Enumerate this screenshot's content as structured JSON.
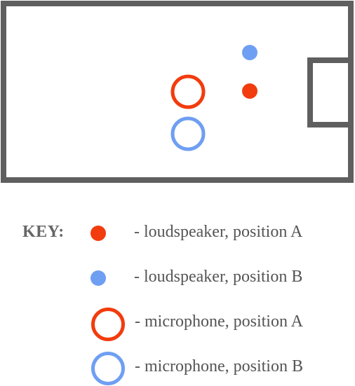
{
  "colors": {
    "position_a": "#f23c0e",
    "position_b": "#6f9ff2",
    "room_outline": "#5f5f5f"
  },
  "diagram": {
    "room": {
      "shape": "rectangle",
      "feature": "alcove on right wall"
    },
    "objects": [
      {
        "kind": "loudspeaker",
        "position": "A",
        "icon": "filled-circle"
      },
      {
        "kind": "loudspeaker",
        "position": "B",
        "icon": "filled-circle"
      },
      {
        "kind": "microphone",
        "position": "A",
        "icon": "ring"
      },
      {
        "kind": "microphone",
        "position": "B",
        "icon": "ring"
      }
    ]
  },
  "key": {
    "title": "KEY:",
    "items": [
      {
        "icon": "filled-circle",
        "color_ref": "position_a",
        "label": "- loudspeaker, position A"
      },
      {
        "icon": "filled-circle",
        "color_ref": "position_b",
        "label": "- loudspeaker, position B"
      },
      {
        "icon": "ring",
        "color_ref": "position_a",
        "label": "- microphone, position A"
      },
      {
        "icon": "ring",
        "color_ref": "position_b",
        "label": "- microphone, position B"
      }
    ]
  }
}
